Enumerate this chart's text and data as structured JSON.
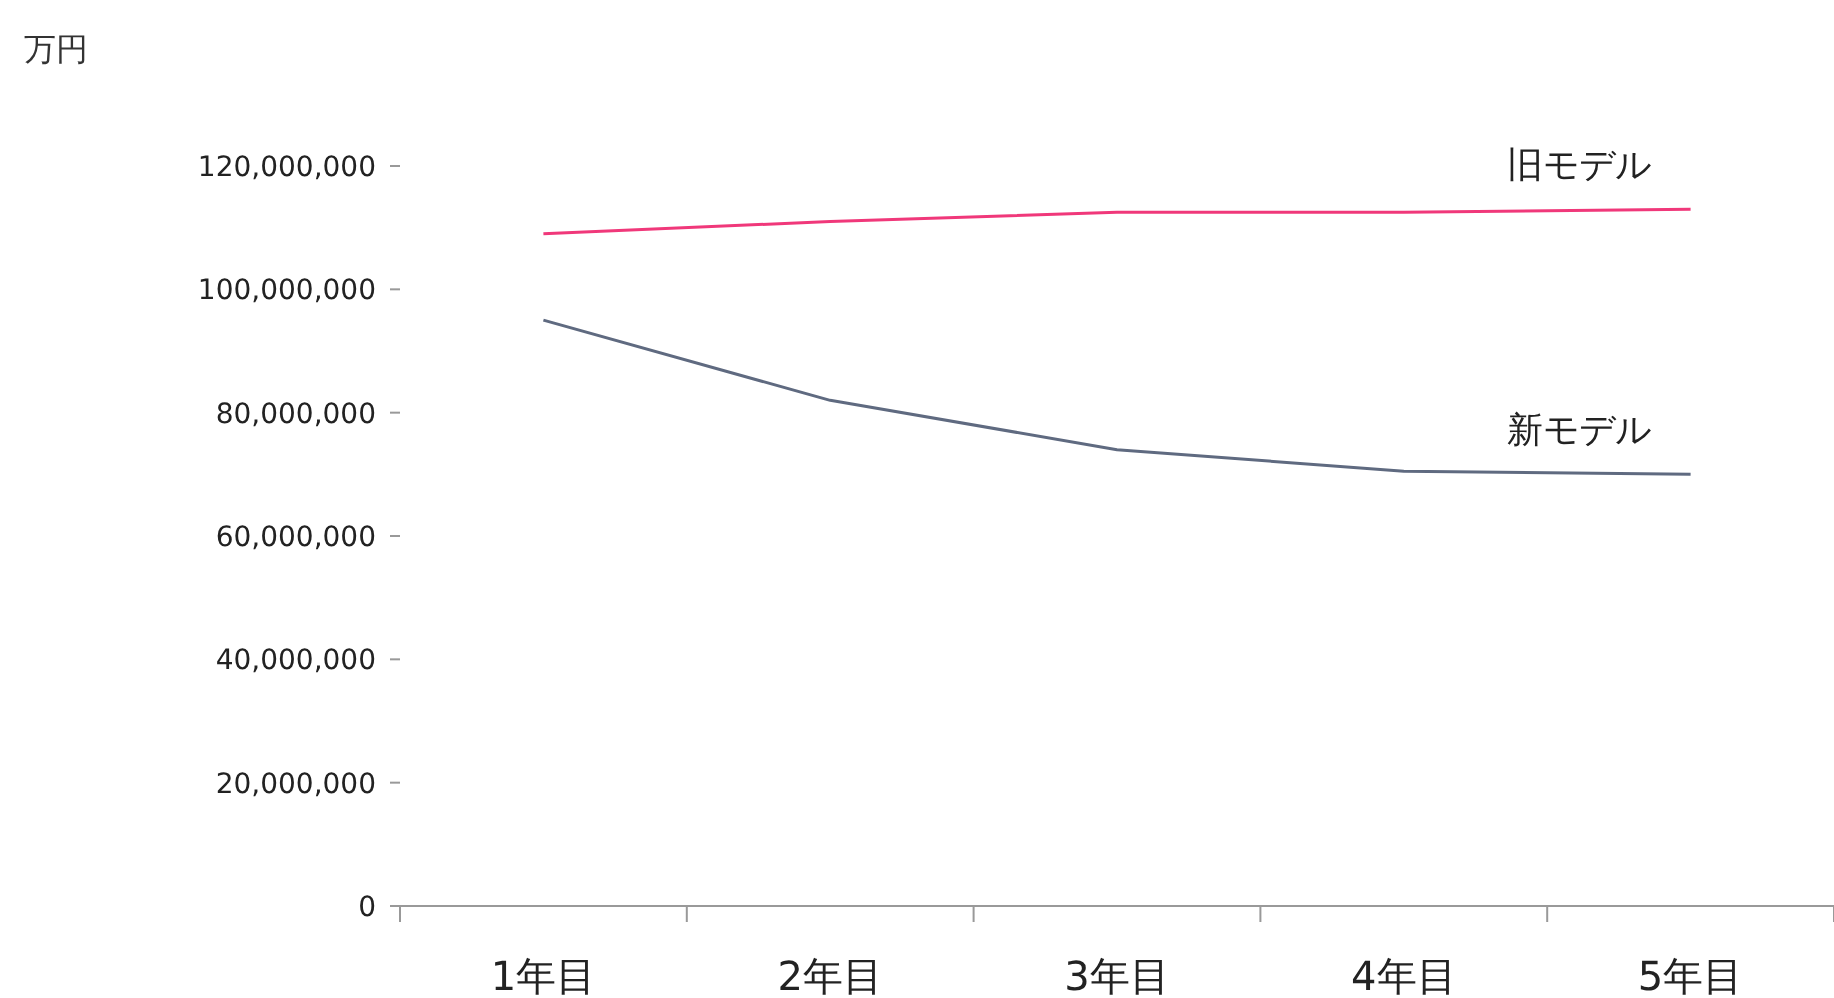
{
  "chart_data": {
    "type": "line",
    "ylabel": "万円",
    "categories": [
      "1年目",
      "2年目",
      "3年目",
      "4年目",
      "5年目"
    ],
    "series": [
      {
        "name": "旧モデル",
        "color": "#f0387a",
        "values": [
          109000000,
          111000000,
          112500000,
          112500000,
          113000000
        ]
      },
      {
        "name": "新モデル",
        "color": "#5f6a80",
        "values": [
          95000000,
          82000000,
          74000000,
          70500000,
          70000000
        ]
      }
    ],
    "ylim": [
      0,
      120000000
    ],
    "yticks": [
      0,
      {
        "value": 20000000,
        "label": "20,000,000"
      },
      {
        "value": 40000000,
        "label": "40,000,000"
      },
      {
        "value": 60000000,
        "label": "60,000,000"
      },
      {
        "value": 80000000,
        "label": "80,000,000"
      },
      {
        "value": 100000000,
        "label": "100,000,000"
      },
      {
        "value": 120000000,
        "label": "120,000,000"
      }
    ],
    "grid": false,
    "legend": false,
    "marker": "none",
    "line_style": "solid"
  }
}
